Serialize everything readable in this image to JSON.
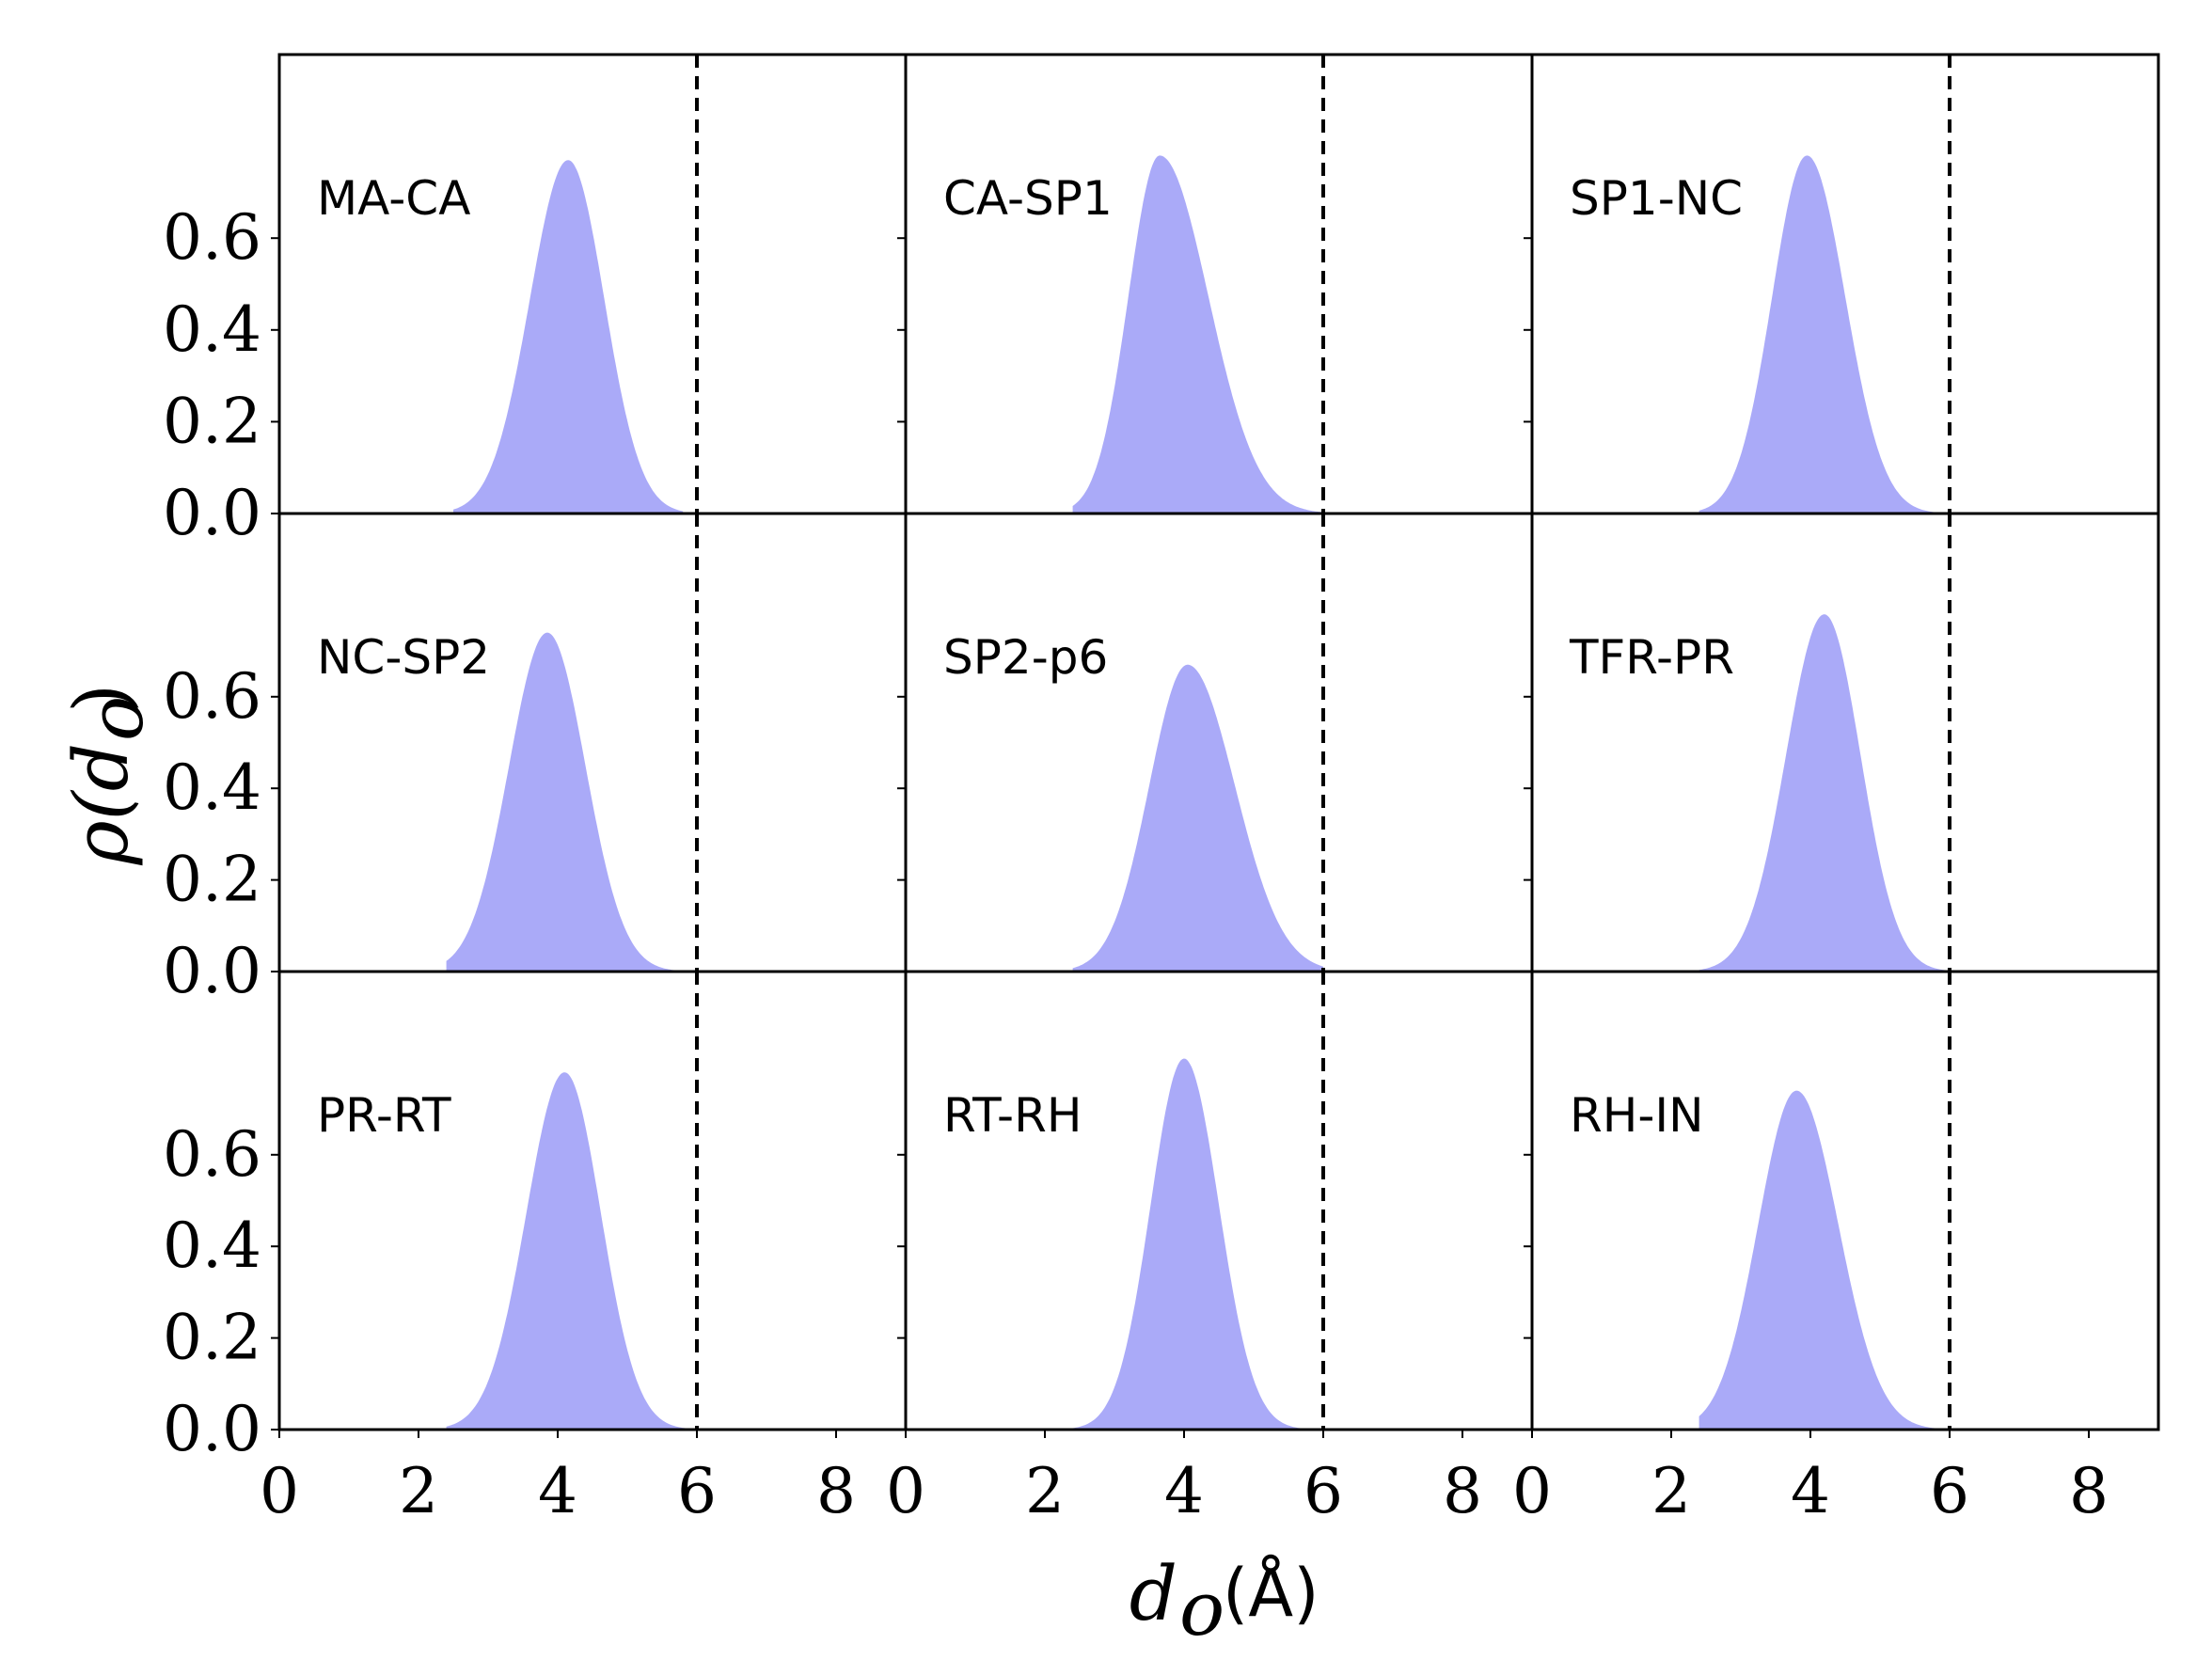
{
  "chart_data": {
    "type": "area",
    "layout": "3x3 grid of subplots",
    "xlabel_var": "d",
    "xlabel_sub": "o",
    "xlabel_unit": "(Å)",
    "ylabel_var": "ρ(d",
    "ylabel_sub": "o",
    "ylabel_close": ")",
    "xlim": [
      0,
      9
    ],
    "ylim": [
      0,
      1.0
    ],
    "x_ticks": [
      0,
      2,
      4,
      6,
      8
    ],
    "x_tick_labels": [
      "0",
      "2",
      "4",
      "6",
      "8"
    ],
    "y_ticks": [
      0.0,
      0.2,
      0.4,
      0.6
    ],
    "y_tick_labels": [
      "0.0",
      "0.2",
      "0.4",
      "0.6"
    ],
    "cutoff_line_x": 6,
    "fill_color": "#aaaaf8",
    "panels": [
      {
        "label": "MA-CA",
        "peak_x": 4.15,
        "peak_y": 0.77,
        "sigma_left": 0.55,
        "sigma_right": 0.52,
        "x_min": 2.5,
        "x_max": 5.8
      },
      {
        "label": "CA-SP1",
        "peak_x": 3.65,
        "peak_y": 0.78,
        "sigma_left": 0.45,
        "sigma_right": 0.7,
        "x_min": 2.4,
        "x_max": 6.0
      },
      {
        "label": "SP1-NC",
        "peak_x": 3.95,
        "peak_y": 0.78,
        "sigma_left": 0.5,
        "sigma_right": 0.55,
        "x_min": 2.4,
        "x_max": 6.0
      },
      {
        "label": "NC-SP2",
        "peak_x": 3.85,
        "peak_y": 0.74,
        "sigma_left": 0.55,
        "sigma_right": 0.55,
        "x_min": 2.4,
        "x_max": 5.9
      },
      {
        "label": "SP2-p6",
        "peak_x": 4.05,
        "peak_y": 0.67,
        "sigma_left": 0.55,
        "sigma_right": 0.68,
        "x_min": 2.4,
        "x_max": 6.0
      },
      {
        "label": "TFR-PR",
        "peak_x": 4.2,
        "peak_y": 0.78,
        "sigma_left": 0.55,
        "sigma_right": 0.52,
        "x_min": 2.4,
        "x_max": 6.0
      },
      {
        "label": "PR-RT",
        "peak_x": 4.1,
        "peak_y": 0.78,
        "sigma_left": 0.55,
        "sigma_right": 0.52,
        "x_min": 2.4,
        "x_max": 5.9
      },
      {
        "label": "RT-RH",
        "peak_x": 4.0,
        "peak_y": 0.81,
        "sigma_left": 0.48,
        "sigma_right": 0.5,
        "x_min": 2.4,
        "x_max": 5.9
      },
      {
        "label": "RH-IN",
        "peak_x": 3.8,
        "peak_y": 0.74,
        "sigma_left": 0.55,
        "sigma_right": 0.6,
        "x_min": 2.4,
        "x_max": 6.0
      }
    ]
  }
}
